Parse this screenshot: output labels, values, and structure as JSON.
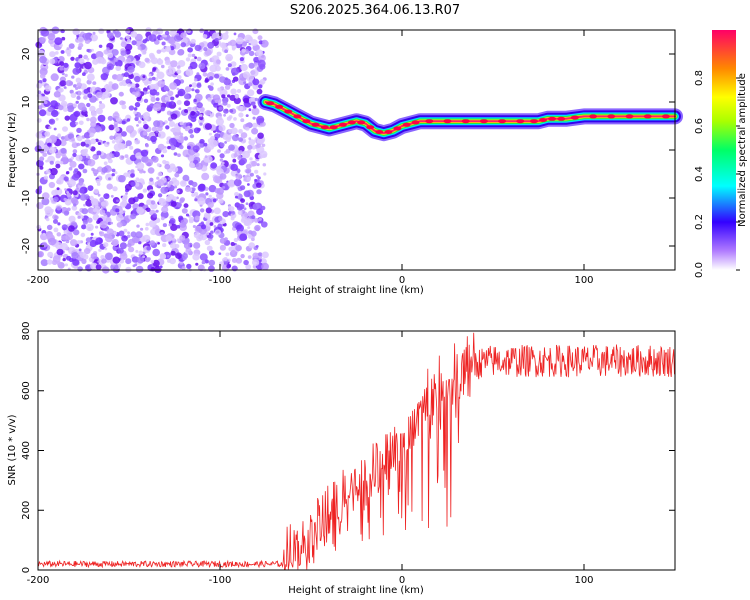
{
  "title": "S206.2025.364.06.13.R07",
  "chart_data": [
    {
      "type": "heatmap",
      "name": "spectrogram",
      "xlabel": "Height of straight line (km)",
      "ylabel": "Frequency (Hz)",
      "xlim": [
        -200,
        150
      ],
      "ylim": [
        -25,
        25
      ],
      "xticks": [
        -200,
        -100,
        0,
        100
      ],
      "yticks": [
        -20,
        -10,
        0,
        10,
        20
      ],
      "noise_region_x": [
        -200,
        -75
      ],
      "ridge": {
        "x": [
          -75,
          -70,
          -65,
          -60,
          -55,
          -50,
          -45,
          -40,
          -35,
          -30,
          -25,
          -20,
          -15,
          -10,
          -5,
          0,
          5,
          10,
          20,
          30,
          40,
          50,
          60,
          70,
          75,
          80,
          85,
          90,
          100,
          110,
          120,
          130,
          140,
          150
        ],
        "y": [
          10,
          9.5,
          8.5,
          7.5,
          6.5,
          5.5,
          5,
          4.5,
          5,
          5.5,
          6,
          5.5,
          4,
          3.5,
          4,
          5,
          5.5,
          6,
          6,
          6,
          6,
          6,
          6,
          6,
          6,
          6.5,
          6.5,
          6.5,
          7,
          7,
          7,
          7,
          7,
          7
        ]
      }
    },
    {
      "type": "line",
      "name": "snr",
      "xlabel": "Height of straight line (km)",
      "ylabel": "SNR (10 * v/v)",
      "xlim": [
        -200,
        150
      ],
      "ylim": [
        0,
        800
      ],
      "xticks": [
        -200,
        -100,
        0,
        100
      ],
      "yticks": [
        0,
        200,
        400,
        600,
        800
      ],
      "color": "#ee2222",
      "envelope": {
        "x": [
          -200,
          -65,
          -62,
          -55,
          -45,
          -35,
          -25,
          -15,
          -5,
          5,
          15,
          25,
          35,
          40,
          50,
          150
        ],
        "y": [
          20,
          20,
          40,
          80,
          150,
          220,
          280,
          340,
          400,
          480,
          560,
          620,
          670,
          690,
          700,
          700
        ]
      }
    }
  ],
  "colorbar": {
    "label": "Normalized spectral amplitude",
    "ticks": [
      "0.0",
      "0.2",
      "0.4",
      "0.6",
      "0.8"
    ],
    "range": [
      0,
      1
    ]
  }
}
